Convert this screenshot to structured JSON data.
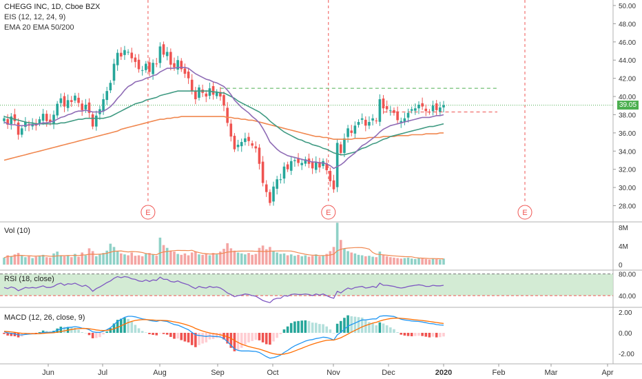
{
  "header": {
    "symbol_line": "CHEGG INC, 1D, Cboe BZX",
    "indicator_1": "EIS (12, 12, 24, 9)",
    "indicator_2": "EMA 20 EMA 50/200"
  },
  "panes": {
    "volume_label": "Vol (10)",
    "rsi_label": "RSI (18, close)",
    "macd_label": "MACD (12, 26, close, 9)"
  },
  "current_price": "39.05",
  "colors": {
    "up": "#26a69a",
    "down": "#ef5350",
    "ema20": "#8e6bb5",
    "ema50": "#3f9a82",
    "ema200": "#f0874f",
    "rsi_line": "#7e57c2",
    "rsi_band": "#c8e6c9",
    "macd_line": "#2196f3",
    "signal_line": "#ff6d00",
    "earnings": "#ef5350",
    "price_line": "#4caf50"
  },
  "chart_data": {
    "type": "line",
    "x_ticks": [
      "Jun",
      "Jul",
      "Aug",
      "Sep",
      "Oct",
      "Nov",
      "Dec",
      "2020",
      "Feb",
      "Mar",
      "Apr"
    ],
    "price_axis": {
      "ticks": [
        "50.00",
        "48.00",
        "46.00",
        "44.00",
        "42.00",
        "40.00",
        "38.00",
        "36.00",
        "34.00",
        "32.00",
        "30.00",
        "28.00"
      ],
      "ylim": [
        27,
        50.5
      ]
    },
    "volume_axis": {
      "ticks": [
        "8M",
        "4M",
        "0"
      ]
    },
    "rsi_axis": {
      "ticks": [
        "80.00",
        "40.00"
      ],
      "band": [
        40,
        80
      ]
    },
    "macd_axis": {
      "ticks": [
        "2.00",
        "0.00",
        "-2.00"
      ]
    },
    "earnings_markers": [
      "E",
      "E",
      "E"
    ],
    "reference_levels": {
      "resistance": 40.9,
      "support": 38.3
    },
    "price_close": [
      37.6,
      36.9,
      37.8,
      37.3,
      35.8,
      36.5,
      37.2,
      36.8,
      37.0,
      36.8,
      37.5,
      38.1,
      37.3,
      37.2,
      38.0,
      39.2,
      39.8,
      38.9,
      39.6,
      39.4,
      40.1,
      39.3,
      38.5,
      39.1,
      38.2,
      36.7,
      37.9,
      38.6,
      39.7,
      40.6,
      41.5,
      43.6,
      44.8,
      44.4,
      45.1,
      44.9,
      44.2,
      43.8,
      43.0,
      42.9,
      43.6,
      42.7,
      43.7,
      43.6,
      45.5,
      44.6,
      44.9,
      43.5,
      43.2,
      44.0,
      43.0,
      42.5,
      42.0,
      40.6,
      39.7,
      41.0,
      40.4,
      40.0,
      40.9,
      40.2,
      40.5,
      40.0,
      39.0,
      37.1,
      35.6,
      34.2,
      34.7,
      35.0,
      35.4,
      35.1,
      34.6,
      34.3,
      32.6,
      30.5,
      29.5,
      28.3,
      30.1,
      30.9,
      30.9,
      32.3,
      32.0,
      32.9,
      33.0,
      32.7,
      32.7,
      33.1,
      32.6,
      32.1,
      32.8,
      32.2,
      32.9,
      31.9,
      30.7,
      29.8,
      34.9,
      33.8,
      35.4,
      36.5,
      36.0,
      36.8,
      37.2,
      37.6,
      36.8,
      37.2,
      37.6,
      37.3,
      39.7,
      38.7,
      38.6,
      38.5,
      38.2,
      37.4,
      37.3,
      37.6,
      38.2,
      38.6,
      38.7,
      39.1,
      38.9,
      38.4,
      38.3,
      39.0,
      38.5,
      38.8,
      39.05
    ],
    "ema20": [
      37.2,
      37.0,
      36.9,
      36.9,
      36.8,
      36.8,
      36.8,
      36.9,
      36.9,
      36.9,
      37.0,
      37.1,
      37.1,
      37.2,
      37.3,
      37.5,
      37.7,
      37.8,
      38.0,
      38.1,
      38.3,
      38.4,
      38.4,
      38.5,
      38.4,
      38.3,
      38.3,
      38.3,
      38.4,
      38.6,
      38.9,
      39.3,
      39.8,
      40.2,
      40.7,
      41.1,
      41.3,
      41.6,
      41.7,
      41.8,
      42.0,
      42.1,
      42.3,
      42.4,
      42.7,
      42.9,
      43.1,
      43.1,
      43.1,
      43.2,
      43.2,
      43.2,
      43.1,
      42.8,
      42.5,
      42.3,
      42.1,
      41.9,
      41.8,
      41.6,
      41.5,
      41.3,
      41.1,
      40.7,
      40.2,
      39.6,
      39.2,
      38.8,
      38.5,
      38.2,
      37.8,
      37.5,
      37.1,
      36.5,
      35.8,
      35.0,
      34.6,
      34.2,
      33.9,
      33.7,
      33.5,
      33.4,
      33.3,
      33.2,
      33.1,
      33.0,
      32.9,
      32.8,
      32.8,
      32.7,
      32.7,
      32.6,
      32.4,
      32.1,
      32.3,
      32.5,
      32.8,
      33.2,
      33.5,
      33.8,
      34.2,
      34.6,
      34.8,
      35.1,
      35.4,
      35.7,
      36.1,
      36.4,
      36.6,
      36.8,
      36.9,
      37.0,
      37.1,
      37.2,
      37.3,
      37.4,
      37.5,
      37.6,
      37.7,
      37.7,
      37.7,
      37.8,
      37.9,
      37.9,
      38.0
    ],
    "ema50": [
      37.8,
      37.7,
      37.6,
      37.5,
      37.4,
      37.3,
      37.2,
      37.1,
      37.1,
      37.0,
      37.0,
      37.0,
      37.0,
      37.0,
      37.0,
      37.0,
      37.1,
      37.1,
      37.2,
      37.3,
      37.4,
      37.5,
      37.5,
      37.6,
      37.6,
      37.6,
      37.6,
      37.6,
      37.6,
      37.7,
      37.8,
      38.0,
      38.2,
      38.4,
      38.6,
      38.8,
      39.0,
      39.2,
      39.3,
      39.4,
      39.6,
      39.7,
      39.8,
      39.9,
      40.1,
      40.2,
      40.3,
      40.4,
      40.5,
      40.6,
      40.6,
      40.6,
      40.6,
      40.6,
      40.6,
      40.6,
      40.6,
      40.6,
      40.6,
      40.5,
      40.5,
      40.4,
      40.4,
      40.2,
      40.0,
      39.8,
      39.5,
      39.3,
      39.1,
      38.9,
      38.7,
      38.5,
      38.3,
      38.0,
      37.7,
      37.3,
      37.0,
      36.7,
      36.4,
      36.1,
      35.9,
      35.7,
      35.5,
      35.3,
      35.2,
      35.0,
      34.9,
      34.7,
      34.6,
      34.5,
      34.3,
      34.2,
      34.0,
      33.8,
      33.7,
      33.6,
      33.6,
      33.7,
      33.8,
      33.9,
      34.1,
      34.3,
      34.4,
      34.6,
      34.8,
      34.9,
      35.1,
      35.3,
      35.4,
      35.6,
      35.7,
      35.8,
      35.9,
      36.0,
      36.1,
      36.2,
      36.3,
      36.4,
      36.5,
      36.6,
      36.7,
      36.7,
      36.8,
      36.9,
      37.0
    ],
    "ema200": [
      33.0,
      33.1,
      33.2,
      33.3,
      33.4,
      33.5,
      33.6,
      33.7,
      33.8,
      33.9,
      34.0,
      34.1,
      34.2,
      34.3,
      34.4,
      34.5,
      34.6,
      34.7,
      34.8,
      34.9,
      35.0,
      35.1,
      35.2,
      35.3,
      35.4,
      35.5,
      35.6,
      35.7,
      35.8,
      35.9,
      36.0,
      36.1,
      36.2,
      36.4,
      36.5,
      36.6,
      36.7,
      36.8,
      36.9,
      37.0,
      37.1,
      37.2,
      37.3,
      37.4,
      37.5,
      37.5,
      37.6,
      37.6,
      37.7,
      37.7,
      37.8,
      37.8,
      37.8,
      37.8,
      37.8,
      37.8,
      37.8,
      37.8,
      37.8,
      37.8,
      37.8,
      37.8,
      37.8,
      37.7,
      37.7,
      37.6,
      37.6,
      37.5,
      37.5,
      37.4,
      37.4,
      37.3,
      37.2,
      37.1,
      37.0,
      36.9,
      36.8,
      36.7,
      36.6,
      36.5,
      36.4,
      36.3,
      36.2,
      36.1,
      36.0,
      35.9,
      35.8,
      35.7,
      35.6,
      35.6,
      35.5,
      35.5,
      35.4,
      35.3,
      35.3,
      35.3,
      35.3,
      35.3,
      35.3,
      35.4,
      35.4,
      35.4,
      35.4,
      35.5,
      35.5,
      35.5,
      35.5,
      35.6,
      35.6,
      35.6,
      35.6,
      35.7,
      35.7,
      35.7,
      35.7,
      35.8,
      35.8,
      35.8,
      35.8,
      35.9,
      35.9,
      35.9,
      35.9,
      36.0,
      36.0
    ],
    "volume_millions": [
      1.5,
      2.0,
      1.8,
      2.2,
      2.5,
      1.9,
      1.6,
      1.8,
      1.4,
      1.7,
      1.9,
      2.1,
      1.6,
      1.5,
      2.4,
      2.8,
      2.0,
      1.8,
      1.9,
      1.6,
      2.3,
      1.7,
      2.6,
      2.0,
      3.5,
      2.9,
      1.8,
      2.2,
      2.5,
      3.0,
      4.5,
      3.8,
      2.9,
      2.4,
      2.2,
      2.0,
      2.6,
      1.9,
      2.0,
      1.8,
      2.3,
      2.5,
      2.2,
      1.9,
      5.8,
      4.2,
      3.6,
      3.0,
      2.8,
      2.3,
      2.1,
      2.4,
      2.0,
      2.6,
      2.8,
      2.2,
      2.1,
      2.3,
      2.0,
      2.5,
      2.2,
      2.8,
      3.4,
      4.6,
      3.5,
      3.0,
      2.6,
      2.4,
      2.2,
      2.5,
      2.1,
      2.3,
      3.6,
      4.1,
      3.3,
      3.8,
      2.9,
      2.6,
      2.3,
      2.4,
      2.0,
      2.2,
      1.9,
      2.1,
      1.8,
      2.0,
      1.7,
      1.9,
      2.2,
      1.8,
      2.0,
      2.3,
      2.9,
      3.8,
      9.0,
      5.3,
      3.4,
      2.9,
      2.6,
      2.4,
      2.1,
      2.0,
      1.8,
      1.9,
      1.7,
      1.6,
      2.8,
      2.1,
      1.8,
      1.6,
      1.5,
      1.4,
      1.3,
      1.4,
      1.5,
      1.3,
      1.2,
      1.4,
      1.3,
      1.2,
      1.1,
      1.3,
      1.2,
      1.1,
      1.3
    ],
    "rsi": [
      55,
      53,
      56,
      54,
      49,
      52,
      55,
      54,
      55,
      54,
      56,
      58,
      55,
      55,
      57,
      61,
      63,
      59,
      62,
      61,
      63,
      60,
      57,
      59,
      55,
      48,
      53,
      56,
      60,
      64,
      67,
      72,
      75,
      73,
      75,
      74,
      71,
      70,
      67,
      66,
      69,
      66,
      69,
      68,
      74,
      70,
      70,
      66,
      65,
      67,
      64,
      62,
      60,
      56,
      53,
      57,
      55,
      54,
      57,
      55,
      56,
      54,
      50,
      45,
      42,
      38,
      40,
      41,
      43,
      42,
      40,
      39,
      35,
      31,
      29,
      27,
      33,
      35,
      35,
      40,
      39,
      42,
      43,
      42,
      42,
      43,
      42,
      40,
      43,
      41,
      43,
      40,
      37,
      35,
      48,
      45,
      50,
      54,
      52,
      55,
      56,
      57,
      54,
      55,
      57,
      55,
      63,
      59,
      59,
      58,
      57,
      55,
      54,
      55,
      57,
      58,
      59,
      60,
      59,
      57,
      57,
      59,
      58,
      58,
      59
    ],
    "macd": [
      0.1,
      0.0,
      -0.05,
      -0.1,
      -0.2,
      -0.2,
      -0.15,
      -0.12,
      -0.1,
      -0.1,
      -0.05,
      0.05,
      0.05,
      0.05,
      0.1,
      0.25,
      0.4,
      0.45,
      0.52,
      0.55,
      0.6,
      0.55,
      0.45,
      0.42,
      0.3,
      0.1,
      0.05,
      0.05,
      0.15,
      0.3,
      0.5,
      0.8,
      1.1,
      1.3,
      1.5,
      1.6,
      1.6,
      1.55,
      1.45,
      1.35,
      1.3,
      1.2,
      1.15,
      1.1,
      1.2,
      1.15,
      1.1,
      0.95,
      0.8,
      0.75,
      0.6,
      0.45,
      0.3,
      0.05,
      -0.2,
      -0.25,
      -0.3,
      -0.35,
      -0.3,
      -0.35,
      -0.35,
      -0.4,
      -0.55,
      -0.85,
      -1.2,
      -1.55,
      -1.7,
      -1.75,
      -1.75,
      -1.75,
      -1.78,
      -1.8,
      -1.9,
      -2.1,
      -2.3,
      -2.45,
      -2.4,
      -2.3,
      -2.15,
      -1.9,
      -1.7,
      -1.45,
      -1.25,
      -1.1,
      -0.95,
      -0.8,
      -0.7,
      -0.65,
      -0.55,
      -0.5,
      -0.42,
      -0.45,
      -0.55,
      -0.7,
      -0.2,
      0.05,
      0.35,
      0.65,
      0.8,
      0.95,
      1.1,
      1.25,
      1.25,
      1.3,
      1.35,
      1.35,
      1.6,
      1.65,
      1.65,
      1.62,
      1.58,
      1.45,
      1.32,
      1.25,
      1.2,
      1.15,
      1.12,
      1.1,
      1.05,
      0.98,
      0.9,
      0.88,
      0.8,
      0.76,
      0.75
    ],
    "signal": [
      0.15,
      0.12,
      0.09,
      0.05,
      0.0,
      -0.04,
      -0.06,
      -0.07,
      -0.08,
      -0.08,
      -0.08,
      -0.05,
      -0.03,
      -0.01,
      0.01,
      0.06,
      0.13,
      0.19,
      0.26,
      0.32,
      0.38,
      0.41,
      0.42,
      0.42,
      0.4,
      0.34,
      0.28,
      0.24,
      0.22,
      0.24,
      0.29,
      0.39,
      0.53,
      0.68,
      0.84,
      0.99,
      1.11,
      1.2,
      1.25,
      1.27,
      1.28,
      1.26,
      1.24,
      1.21,
      1.21,
      1.2,
      1.18,
      1.13,
      1.06,
      1.0,
      0.92,
      0.83,
      0.72,
      0.59,
      0.43,
      0.29,
      0.17,
      0.07,
      -0.01,
      -0.08,
      -0.13,
      -0.19,
      -0.26,
      -0.38,
      -0.54,
      -0.74,
      -0.93,
      -1.09,
      -1.22,
      -1.33,
      -1.42,
      -1.49,
      -1.57,
      -1.68,
      -1.8,
      -1.93,
      -2.02,
      -2.08,
      -2.09,
      -2.05,
      -1.98,
      -1.88,
      -1.75,
      -1.62,
      -1.49,
      -1.35,
      -1.22,
      -1.1,
      -0.99,
      -0.89,
      -0.8,
      -0.73,
      -0.7,
      -0.7,
      -0.6,
      -0.47,
      -0.31,
      -0.12,
      0.07,
      0.24,
      0.41,
      0.58,
      0.71,
      0.83,
      0.94,
      1.02,
      1.14,
      1.24,
      1.32,
      1.38,
      1.42,
      1.42,
      1.4,
      1.37,
      1.34,
      1.3,
      1.26,
      1.23,
      1.19,
      1.15,
      1.1,
      1.05,
      1.0,
      0.95,
      0.91
    ]
  }
}
